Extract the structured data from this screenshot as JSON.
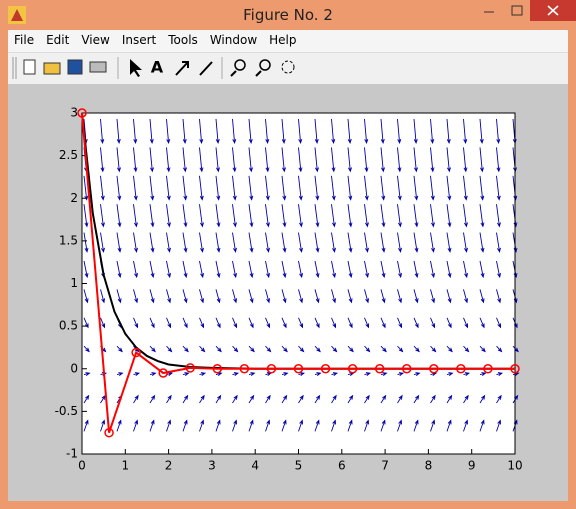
{
  "window": {
    "title": "Figure No. 2",
    "menu": [
      "File",
      "Edit",
      "View",
      "Insert",
      "Tools",
      "Window",
      "Help"
    ]
  },
  "chart_data": {
    "type": "line",
    "xlim": [
      0,
      10
    ],
    "xticks": [
      0,
      1,
      2,
      3,
      4,
      5,
      6,
      7,
      8,
      9,
      10
    ],
    "ylim": [
      -1,
      3
    ],
    "yticks": [
      -1,
      -0.5,
      0,
      0.5,
      1,
      1.5,
      2,
      2.5,
      3
    ],
    "series": [
      {
        "color": "#000000",
        "marker": false,
        "x": [
          0,
          0.25,
          0.5,
          0.75,
          1,
          1.25,
          1.5,
          1.75,
          2,
          2.5,
          3,
          4,
          10
        ],
        "values": [
          3,
          1.82,
          1.1,
          0.67,
          0.41,
          0.25,
          0.15,
          0.09,
          0.05,
          0.02,
          0.01,
          0,
          0
        ]
      },
      {
        "color": "#ff0000",
        "marker": true,
        "x": [
          0,
          0.625,
          1.25,
          1.875,
          2.5,
          3.125,
          3.75,
          4.375,
          5,
          5.625,
          6.25,
          6.875,
          7.5,
          8.125,
          8.75,
          9.375,
          10
        ],
        "values": [
          3,
          -0.75,
          0.19,
          -0.05,
          0.01,
          0,
          0,
          0,
          0,
          0,
          0,
          0,
          0,
          0,
          0,
          0,
          0
        ]
      }
    ]
  }
}
